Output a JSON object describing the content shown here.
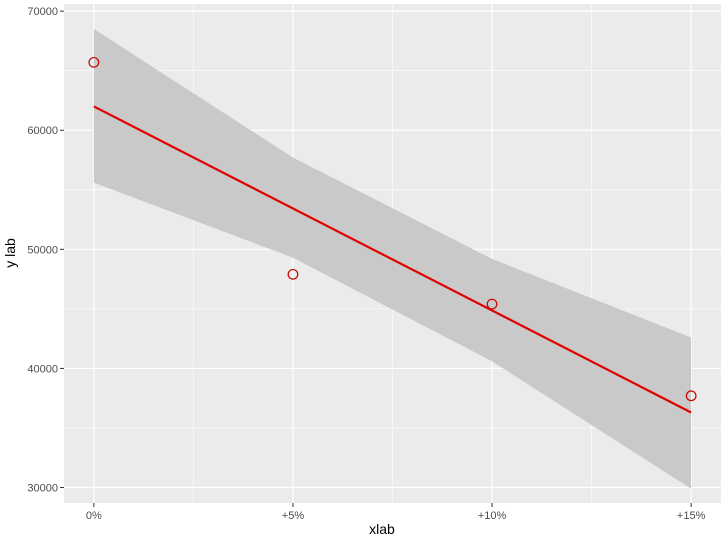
{
  "chart_data": {
    "type": "scatter",
    "xlabel": "xlab",
    "ylabel": "y lab",
    "x_ticks": [
      {
        "value": 0,
        "label": "0%"
      },
      {
        "value": 5,
        "label": "+5%"
      },
      {
        "value": 10,
        "label": "+10%"
      },
      {
        "value": 15,
        "label": "+15%"
      }
    ],
    "y_ticks": [
      {
        "value": 30000,
        "label": "30000"
      },
      {
        "value": 40000,
        "label": "40000"
      },
      {
        "value": 50000,
        "label": "50000"
      },
      {
        "value": 60000,
        "label": "60000"
      },
      {
        "value": 70000,
        "label": "70000"
      }
    ],
    "xlim": [
      -0.75,
      15.75
    ],
    "ylim": [
      28700,
      70600
    ],
    "points": [
      {
        "x": 0,
        "y": 65700
      },
      {
        "x": 5,
        "y": 47900
      },
      {
        "x": 10,
        "y": 45400
      },
      {
        "x": 15,
        "y": 37700
      }
    ],
    "fit_line": {
      "x": [
        0,
        15
      ],
      "y": [
        62000,
        36300
      ]
    },
    "confidence_band": {
      "x": [
        0,
        5,
        10,
        15
      ],
      "upper": [
        68500,
        57700,
        49200,
        42600
      ],
      "lower": [
        55600,
        49300,
        40600,
        29900
      ]
    },
    "grid": true,
    "colors": {
      "panel": "#ebebeb",
      "grid": "#ffffff",
      "band": "#c9c9c9",
      "line": "#e00000",
      "point": "#cc0000"
    }
  }
}
